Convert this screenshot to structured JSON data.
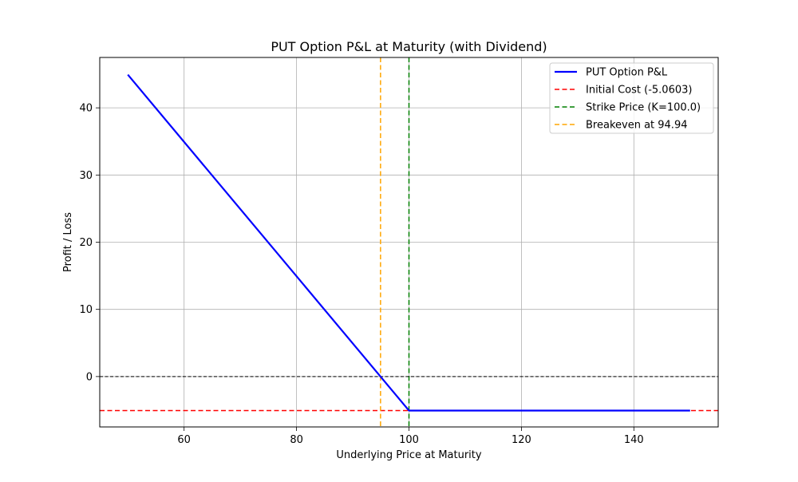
{
  "chart_data": {
    "type": "line",
    "title": "PUT Option P&L at Maturity (with Dividend)",
    "xlabel": "Underlying Price at Maturity",
    "ylabel": "Profit / Loss",
    "xlim": [
      45,
      155
    ],
    "ylim": [
      -7.5,
      47.5
    ],
    "xticks": [
      60,
      80,
      100,
      120,
      140
    ],
    "yticks": [
      0,
      10,
      20,
      30,
      40
    ],
    "grid": true,
    "legend_position": "top-right",
    "series": [
      {
        "name": "PUT Option P&L",
        "color": "#0000ff",
        "style": "solid",
        "x": [
          50,
          100,
          150
        ],
        "y": [
          44.94,
          -5.0603,
          -5.0603
        ]
      }
    ],
    "reference_lines": [
      {
        "name": "Initial Cost (-5.0603)",
        "orientation": "horizontal",
        "value": -5.0603,
        "color": "#ff0000",
        "style": "dashed"
      },
      {
        "name": "Strike Price (K=100.0)",
        "orientation": "vertical",
        "value": 100.0,
        "color": "#008000",
        "style": "dashed"
      },
      {
        "name": "Breakeven at 94.94",
        "orientation": "vertical",
        "value": 94.94,
        "color": "#ffa500",
        "style": "dashed"
      },
      {
        "name": "",
        "orientation": "horizontal",
        "value": 0,
        "color": "#000000",
        "style": "dashed-thin"
      }
    ],
    "legend_entries": [
      {
        "label": "PUT Option P&L",
        "color": "#0000ff",
        "style": "solid"
      },
      {
        "label": "Initial Cost (-5.0603)",
        "color": "#ff0000",
        "style": "dashed"
      },
      {
        "label": "Strike Price (K=100.0)",
        "color": "#008000",
        "style": "dashed"
      },
      {
        "label": "Breakeven at 94.94",
        "color": "#ffa500",
        "style": "dashed"
      }
    ]
  }
}
